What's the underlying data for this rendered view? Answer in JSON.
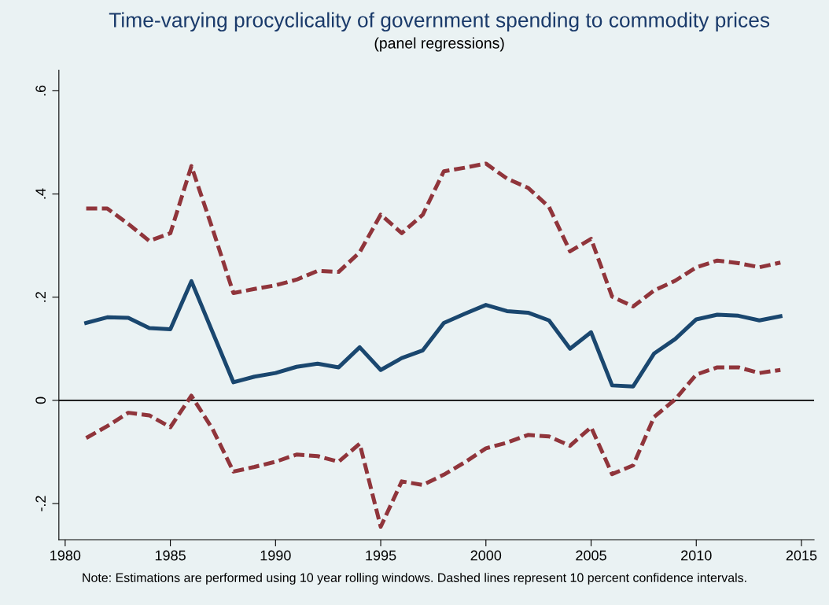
{
  "chart_data": {
    "type": "line",
    "title": "Time-varying procyclicality of government spending to commodity prices",
    "subtitle": "(panel regressions)",
    "annotations": [
      "Note: Estimations are performed using 10 year rolling windows. Dashed lines represent 10 percent confidence intervals."
    ],
    "x": [
      1981,
      1982,
      1983,
      1984,
      1985,
      1986,
      1987,
      1988,
      1989,
      1990,
      1991,
      1992,
      1993,
      1994,
      1995,
      1996,
      1997,
      1998,
      1999,
      2000,
      2001,
      2002,
      2003,
      2004,
      2005,
      2006,
      2007,
      2008,
      2009,
      2010,
      2011,
      2012,
      2013,
      2014
    ],
    "series": [
      {
        "color": "#90353b",
        "line_style": "dashed",
        "values": [
          0.372,
          0.372,
          0.342,
          0.309,
          0.324,
          0.454,
          0.333,
          0.208,
          0.216,
          0.223,
          0.234,
          0.251,
          0.249,
          0.287,
          0.36,
          0.324,
          0.36,
          0.444,
          0.451,
          0.459,
          0.43,
          0.412,
          0.375,
          0.289,
          0.313,
          0.201,
          0.182,
          0.213,
          0.232,
          0.258,
          0.271,
          0.266,
          0.258,
          0.267
        ]
      },
      {
        "color": "#1a476f",
        "line_style": "solid",
        "values": [
          0.15,
          0.161,
          0.16,
          0.14,
          0.138,
          0.231,
          0.133,
          0.035,
          0.046,
          0.053,
          0.065,
          0.071,
          0.064,
          0.103,
          0.059,
          0.082,
          0.097,
          0.15,
          0.168,
          0.185,
          0.173,
          0.17,
          0.155,
          0.1,
          0.132,
          0.029,
          0.027,
          0.091,
          0.119,
          0.157,
          0.166,
          0.164,
          0.155,
          0.163
        ]
      },
      {
        "color": "#90353b",
        "line_style": "dashed",
        "values": [
          -0.073,
          -0.05,
          -0.024,
          -0.029,
          -0.052,
          0.009,
          -0.055,
          -0.138,
          -0.129,
          -0.119,
          -0.105,
          -0.108,
          -0.119,
          -0.084,
          -0.245,
          -0.157,
          -0.164,
          -0.144,
          -0.12,
          -0.093,
          -0.082,
          -0.067,
          -0.07,
          -0.088,
          -0.052,
          -0.143,
          -0.126,
          -0.032,
          0.002,
          0.05,
          0.064,
          0.064,
          0.053,
          0.059
        ]
      }
    ],
    "xlim": [
      1979.7,
      2015.6
    ],
    "xticks": [
      1980,
      1985,
      1990,
      1995,
      2000,
      2005,
      2010,
      2015
    ],
    "ylim": [
      -0.27,
      0.64
    ],
    "yticks": [
      {
        "value": -0.2,
        "label": "-.2"
      },
      0,
      {
        "value": 0.2,
        "label": ".2"
      },
      {
        "value": 0.4,
        "label": ".4"
      },
      {
        "value": 0.6,
        "label": ".6"
      }
    ],
    "ref_lines": [
      {
        "axis": "y",
        "value": 0,
        "color": "#000000",
        "line_style": "solid"
      }
    ],
    "grid": false,
    "legend": false,
    "marker": "none"
  }
}
